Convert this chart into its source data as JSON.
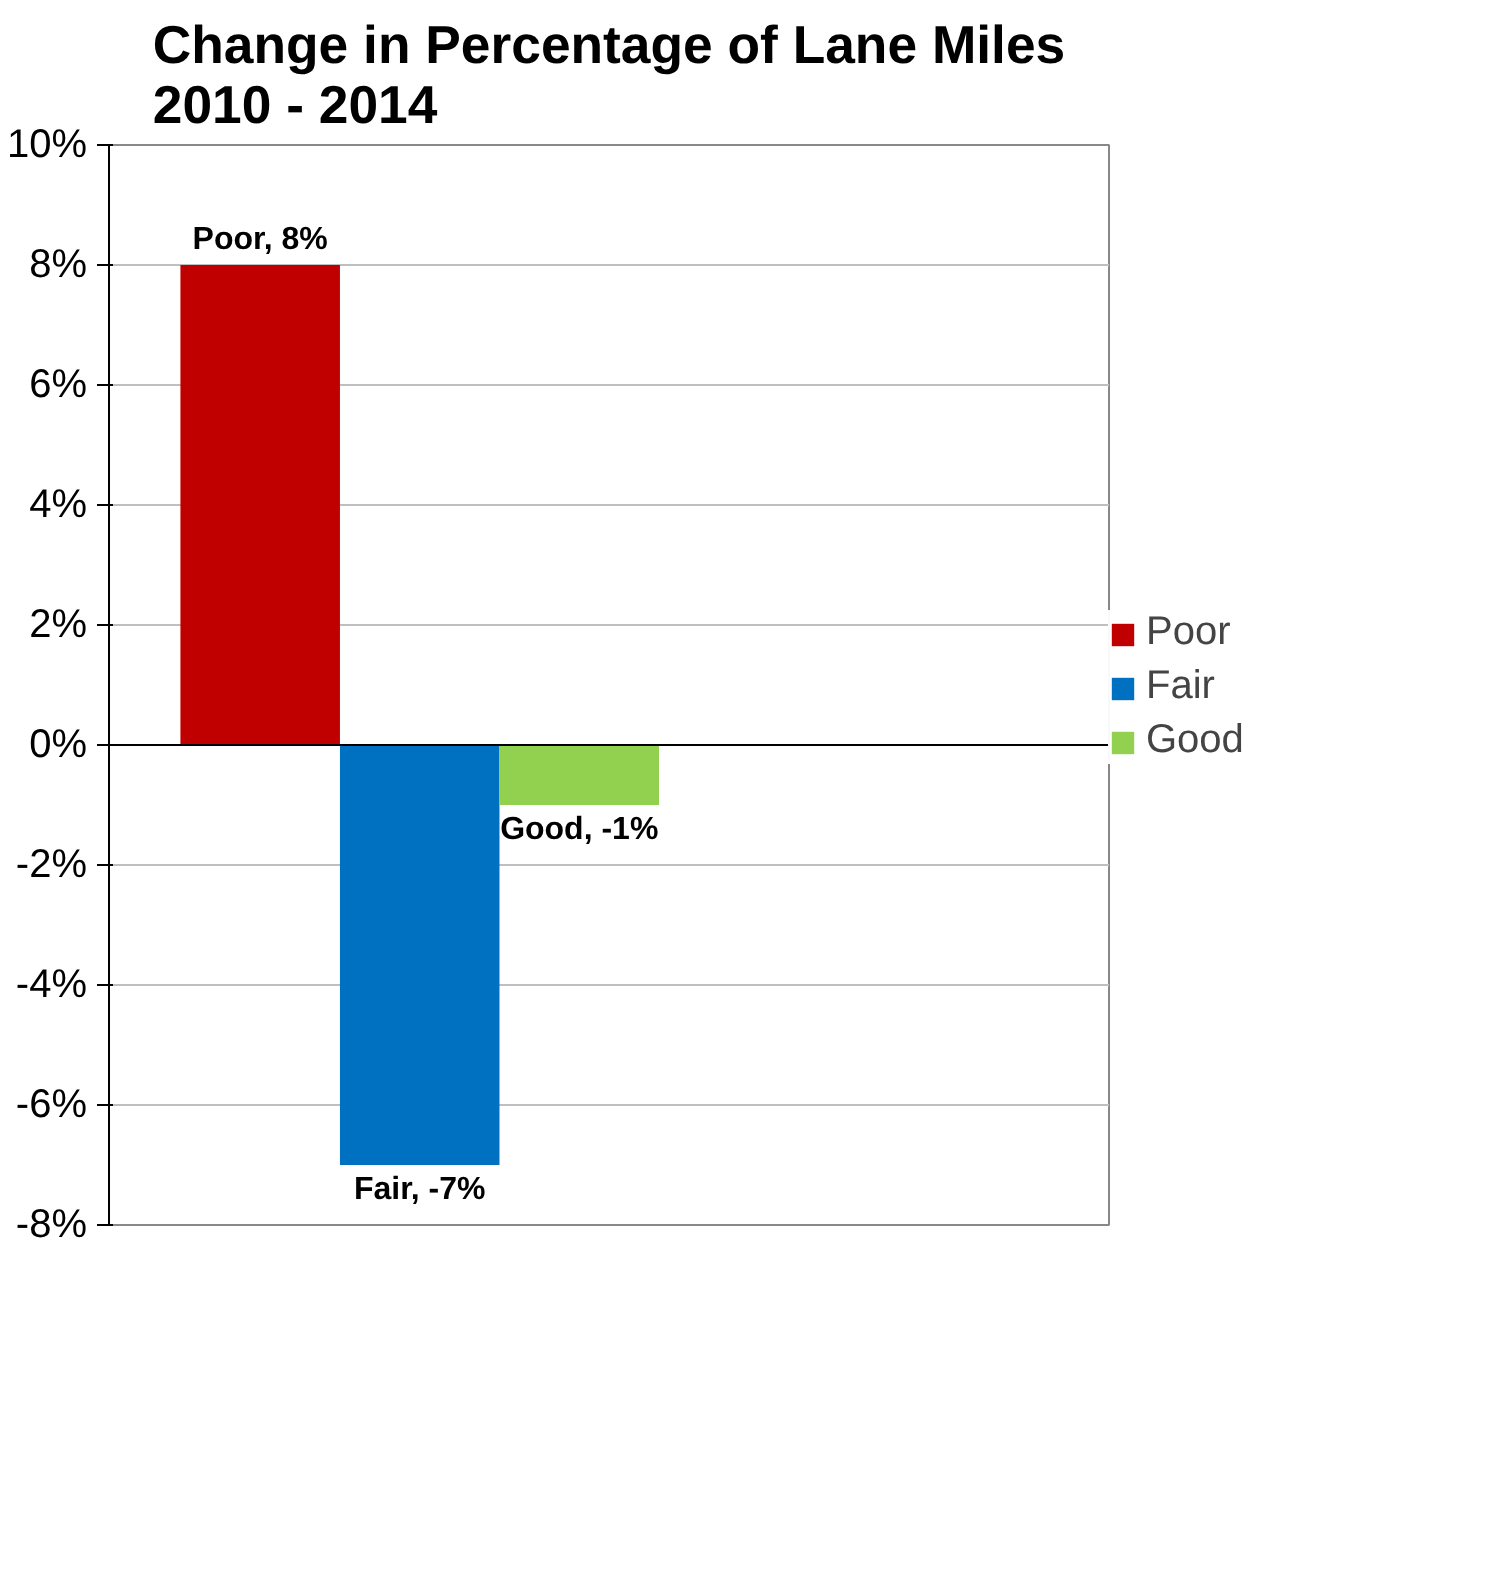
{
  "chart_data": {
    "type": "bar",
    "title": "Change in Percentage of Lane Miles\n2010 - 2014",
    "categories": [
      null
    ],
    "series": [
      {
        "name": "Poor",
        "color": "#c00000",
        "values": [
          8
        ],
        "value_labels": [
          "Poor, 8%"
        ]
      },
      {
        "name": "Fair",
        "color": "#0070c0",
        "values": [
          -7
        ],
        "value_labels": [
          "Fair, -7%"
        ]
      },
      {
        "name": "Good",
        "color": "#92d050",
        "values": [
          -1
        ],
        "value_labels": [
          "Good, -1%"
        ]
      }
    ],
    "ylim": [
      -8,
      10
    ],
    "yticks": [
      {
        "value": -8,
        "label": "-8%"
      },
      {
        "value": -6,
        "label": "-6%"
      },
      {
        "value": -4,
        "label": "-4%"
      },
      {
        "value": -2,
        "label": "-2%"
      },
      {
        "value": 0,
        "label": "0%"
      },
      {
        "value": 2,
        "label": "2%"
      },
      {
        "value": 4,
        "label": "4%"
      },
      {
        "value": 6,
        "label": "6%"
      },
      {
        "value": 8,
        "label": "8%"
      },
      {
        "value": 10,
        "label": "10%"
      }
    ],
    "grid": "y",
    "legend": "right"
  }
}
